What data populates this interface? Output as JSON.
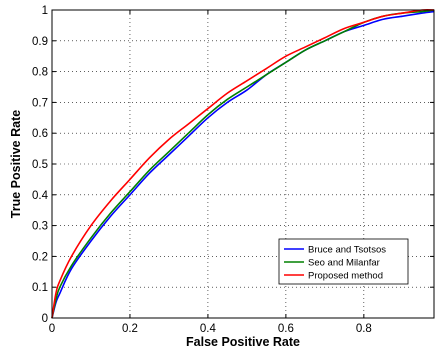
{
  "chart_data": {
    "type": "line",
    "title": "",
    "xlabel": "False Positive Rate",
    "ylabel": "True Positive Rate",
    "xlim": [
      0,
      0.98
    ],
    "ylim": [
      0,
      1
    ],
    "x_ticks": [
      0,
      0.2,
      0.4,
      0.6,
      0.8
    ],
    "x_tick_labels": [
      "0",
      "0.2",
      "0.4",
      "0.6",
      "0.8"
    ],
    "y_ticks": [
      0,
      0.1,
      0.2,
      0.3,
      0.4,
      0.5,
      0.6,
      0.7,
      0.8,
      0.9,
      1
    ],
    "y_tick_labels": [
      "0",
      "0.1",
      "0.2",
      "0.3",
      "0.4",
      "0.5",
      "0.6",
      "0.7",
      "0.8",
      "0.9",
      "1"
    ],
    "grid": true,
    "legend_position": "lower-right",
    "series": [
      {
        "name": "Bruce and Tsotsos",
        "color": "#0000ff",
        "x": [
          0,
          0.01,
          0.02,
          0.05,
          0.1,
          0.15,
          0.2,
          0.25,
          0.3,
          0.35,
          0.4,
          0.45,
          0.5,
          0.55,
          0.6,
          0.65,
          0.7,
          0.75,
          0.8,
          0.85,
          0.9,
          0.95,
          0.98
        ],
        "y": [
          0,
          0.05,
          0.08,
          0.16,
          0.25,
          0.33,
          0.4,
          0.47,
          0.53,
          0.59,
          0.65,
          0.7,
          0.74,
          0.79,
          0.83,
          0.87,
          0.9,
          0.93,
          0.95,
          0.97,
          0.98,
          0.99,
          0.995
        ]
      },
      {
        "name": "Seo and Milanfar",
        "color": "#008000",
        "x": [
          0,
          0.01,
          0.02,
          0.05,
          0.1,
          0.15,
          0.2,
          0.25,
          0.3,
          0.35,
          0.4,
          0.45,
          0.5,
          0.55,
          0.6,
          0.65,
          0.7,
          0.75,
          0.8,
          0.85,
          0.9,
          0.95,
          0.98
        ],
        "y": [
          0,
          0.06,
          0.1,
          0.17,
          0.26,
          0.34,
          0.41,
          0.48,
          0.54,
          0.6,
          0.66,
          0.71,
          0.75,
          0.79,
          0.83,
          0.87,
          0.9,
          0.93,
          0.96,
          0.98,
          0.99,
          0.995,
          1.0
        ]
      },
      {
        "name": "Proposed method",
        "color": "#ff0000",
        "x": [
          0,
          0.01,
          0.02,
          0.05,
          0.1,
          0.15,
          0.2,
          0.25,
          0.3,
          0.35,
          0.4,
          0.45,
          0.5,
          0.55,
          0.6,
          0.65,
          0.7,
          0.75,
          0.8,
          0.85,
          0.9,
          0.95,
          0.98
        ],
        "y": [
          0,
          0.08,
          0.12,
          0.2,
          0.3,
          0.38,
          0.45,
          0.52,
          0.58,
          0.63,
          0.68,
          0.73,
          0.77,
          0.81,
          0.85,
          0.88,
          0.91,
          0.94,
          0.96,
          0.98,
          0.99,
          1.0,
          1.0
        ]
      }
    ]
  }
}
